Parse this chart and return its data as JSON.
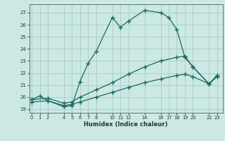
{
  "xlabel": "Humidex (Indice chaleur)",
  "bg_color": "#cce8e4",
  "grid_color": "#aacfca",
  "line_color": "#1a6b5a",
  "line1_x": [
    0,
    1,
    2,
    4,
    5,
    6,
    7,
    8,
    10,
    11,
    12,
    14,
    16,
    17,
    18,
    19,
    20,
    22,
    23
  ],
  "line1_y": [
    19.8,
    20.1,
    19.7,
    19.2,
    19.3,
    21.3,
    22.8,
    23.8,
    26.6,
    25.8,
    26.3,
    27.2,
    27.0,
    26.6,
    25.6,
    23.3,
    22.5,
    21.1,
    21.8
  ],
  "line2_x": [
    0,
    2,
    4,
    5,
    6,
    8,
    10,
    12,
    14,
    16,
    18,
    19,
    20,
    22,
    23
  ],
  "line2_y": [
    19.8,
    19.9,
    19.5,
    19.6,
    20.0,
    20.6,
    21.2,
    21.9,
    22.5,
    23.0,
    23.3,
    23.4,
    22.5,
    21.1,
    21.8
  ],
  "line3_x": [
    0,
    2,
    4,
    5,
    6,
    8,
    10,
    12,
    14,
    16,
    18,
    19,
    20,
    22,
    23
  ],
  "line3_y": [
    19.6,
    19.7,
    19.3,
    19.4,
    19.6,
    20.0,
    20.4,
    20.8,
    21.2,
    21.5,
    21.8,
    21.9,
    21.7,
    21.1,
    21.7
  ],
  "xticks": [
    0,
    1,
    2,
    4,
    5,
    6,
    7,
    8,
    10,
    11,
    12,
    14,
    16,
    17,
    18,
    19,
    20,
    22,
    23
  ],
  "yticks": [
    19,
    20,
    21,
    22,
    23,
    24,
    25,
    26,
    27
  ],
  "ylim": [
    18.7,
    27.7
  ],
  "xlim": [
    -0.3,
    23.7
  ]
}
